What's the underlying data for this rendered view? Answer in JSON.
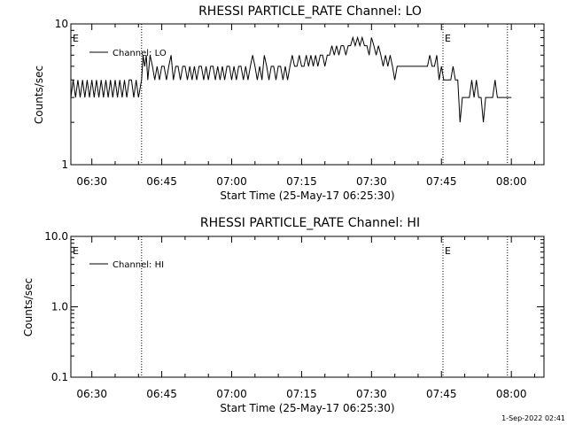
{
  "footer": {
    "timestamp": "1-Sep-2022 02:41"
  },
  "chart_data": [
    {
      "type": "line",
      "title": "RHESSI PARTICLE_RATE Channel: LO",
      "xlabel": "Start Time (25-May-17 06:25:30)",
      "ylabel": "Counts/sec",
      "yscale": "log",
      "ylim": [
        1,
        10
      ],
      "y_ticks": [
        {
          "value": 1,
          "label": "1"
        },
        {
          "value": 10,
          "label": "10"
        }
      ],
      "x_range": [
        "06:25:30",
        "08:07:00"
      ],
      "x_ticks": [
        "06:30",
        "06:45",
        "07:00",
        "07:15",
        "07:30",
        "07:45",
        "08:00"
      ],
      "event_lines": [
        "06:40:40",
        "07:45:20",
        "07:59:10"
      ],
      "event_markers": [
        {
          "text": "E",
          "time": "06:25:30"
        },
        {
          "text": "E",
          "time": "07:45:20"
        }
      ],
      "legend_position": "top-left",
      "series": [
        {
          "name": "Channel: LO",
          "points": [
            [
              "06:25:30",
              3
            ],
            [
              "06:26:00",
              4
            ],
            [
              "06:26:30",
              3
            ],
            [
              "06:27:00",
              4
            ],
            [
              "06:27:30",
              3
            ],
            [
              "06:28:00",
              4
            ],
            [
              "06:28:30",
              3
            ],
            [
              "06:29:00",
              4
            ],
            [
              "06:29:30",
              3
            ],
            [
              "06:30:00",
              4
            ],
            [
              "06:30:30",
              3
            ],
            [
              "06:31:00",
              4
            ],
            [
              "06:31:30",
              3
            ],
            [
              "06:32:00",
              4
            ],
            [
              "06:32:30",
              3
            ],
            [
              "06:33:00",
              4
            ],
            [
              "06:33:30",
              3
            ],
            [
              "06:34:00",
              4
            ],
            [
              "06:34:30",
              3
            ],
            [
              "06:35:00",
              4
            ],
            [
              "06:35:30",
              3
            ],
            [
              "06:36:00",
              4
            ],
            [
              "06:36:30",
              3
            ],
            [
              "06:37:00",
              4
            ],
            [
              "06:37:30",
              3
            ],
            [
              "06:38:00",
              4
            ],
            [
              "06:38:30",
              4
            ],
            [
              "06:39:00",
              3
            ],
            [
              "06:39:30",
              4
            ],
            [
              "06:40:00",
              3
            ],
            [
              "06:40:40",
              4
            ],
            [
              "06:41:00",
              6
            ],
            [
              "06:41:20",
              5
            ],
            [
              "06:41:40",
              6
            ],
            [
              "06:42:00",
              4
            ],
            [
              "06:42:30",
              6
            ],
            [
              "06:43:00",
              5
            ],
            [
              "06:43:30",
              4
            ],
            [
              "06:44:00",
              5
            ],
            [
              "06:44:30",
              4
            ],
            [
              "06:45:00",
              5
            ],
            [
              "06:45:30",
              5
            ],
            [
              "06:46:00",
              4
            ],
            [
              "06:46:30",
              5
            ],
            [
              "06:47:00",
              6
            ],
            [
              "06:47:30",
              4
            ],
            [
              "06:48:00",
              5
            ],
            [
              "06:48:30",
              5
            ],
            [
              "06:49:00",
              4
            ],
            [
              "06:49:30",
              5
            ],
            [
              "06:50:00",
              5
            ],
            [
              "06:50:30",
              4
            ],
            [
              "06:51:00",
              5
            ],
            [
              "06:51:30",
              4
            ],
            [
              "06:52:00",
              5
            ],
            [
              "06:52:30",
              4
            ],
            [
              "06:53:00",
              5
            ],
            [
              "06:53:30",
              5
            ],
            [
              "06:54:00",
              4
            ],
            [
              "06:54:30",
              5
            ],
            [
              "06:55:00",
              4
            ],
            [
              "06:55:30",
              5
            ],
            [
              "06:56:00",
              5
            ],
            [
              "06:56:30",
              4
            ],
            [
              "06:57:00",
              5
            ],
            [
              "06:57:30",
              4
            ],
            [
              "06:58:00",
              5
            ],
            [
              "06:58:30",
              4
            ],
            [
              "06:59:00",
              5
            ],
            [
              "06:59:30",
              5
            ],
            [
              "07:00:00",
              4
            ],
            [
              "07:00:30",
              5
            ],
            [
              "07:01:00",
              4
            ],
            [
              "07:01:30",
              5
            ],
            [
              "07:02:00",
              5
            ],
            [
              "07:02:30",
              4
            ],
            [
              "07:03:00",
              5
            ],
            [
              "07:03:30",
              4
            ],
            [
              "07:04:00",
              5
            ],
            [
              "07:04:30",
              6
            ],
            [
              "07:05:00",
              5
            ],
            [
              "07:05:30",
              4
            ],
            [
              "07:06:00",
              5
            ],
            [
              "07:06:30",
              4
            ],
            [
              "07:07:00",
              6
            ],
            [
              "07:07:30",
              5
            ],
            [
              "07:08:00",
              4
            ],
            [
              "07:08:30",
              5
            ],
            [
              "07:09:00",
              5
            ],
            [
              "07:09:30",
              4
            ],
            [
              "07:10:00",
              5
            ],
            [
              "07:10:30",
              5
            ],
            [
              "07:11:00",
              4
            ],
            [
              "07:11:30",
              5
            ],
            [
              "07:12:00",
              4
            ],
            [
              "07:12:30",
              5
            ],
            [
              "07:13:00",
              6
            ],
            [
              "07:13:30",
              5
            ],
            [
              "07:14:00",
              5
            ],
            [
              "07:14:30",
              6
            ],
            [
              "07:15:00",
              5
            ],
            [
              "07:15:30",
              5
            ],
            [
              "07:16:00",
              6
            ],
            [
              "07:16:30",
              5
            ],
            [
              "07:17:00",
              6
            ],
            [
              "07:17:30",
              5
            ],
            [
              "07:18:00",
              6
            ],
            [
              "07:18:30",
              5
            ],
            [
              "07:19:00",
              6
            ],
            [
              "07:19:30",
              6
            ],
            [
              "07:20:00",
              5
            ],
            [
              "07:20:30",
              6
            ],
            [
              "07:21:00",
              6
            ],
            [
              "07:21:30",
              7
            ],
            [
              "07:22:00",
              6
            ],
            [
              "07:22:30",
              7
            ],
            [
              "07:23:00",
              6
            ],
            [
              "07:23:30",
              7
            ],
            [
              "07:24:00",
              7
            ],
            [
              "07:24:30",
              6
            ],
            [
              "07:25:00",
              7
            ],
            [
              "07:25:30",
              7
            ],
            [
              "07:26:00",
              8
            ],
            [
              "07:26:30",
              7
            ],
            [
              "07:27:00",
              8
            ],
            [
              "07:27:30",
              7
            ],
            [
              "07:28:00",
              8
            ],
            [
              "07:28:30",
              7
            ],
            [
              "07:29:00",
              7
            ],
            [
              "07:29:30",
              6
            ],
            [
              "07:30:00",
              8
            ],
            [
              "07:30:30",
              7
            ],
            [
              "07:31:00",
              6
            ],
            [
              "07:31:30",
              7
            ],
            [
              "07:32:00",
              6
            ],
            [
              "07:32:30",
              5
            ],
            [
              "07:33:00",
              6
            ],
            [
              "07:33:30",
              5
            ],
            [
              "07:34:00",
              6
            ],
            [
              "07:34:30",
              5
            ],
            [
              "07:35:00",
              4
            ],
            [
              "07:35:30",
              5
            ],
            [
              "07:36:00",
              5
            ],
            [
              "07:37:00",
              5
            ],
            [
              "07:38:00",
              5
            ],
            [
              "07:38:30",
              5
            ],
            [
              "07:39:00",
              5
            ],
            [
              "07:40:00",
              5
            ],
            [
              "07:41:00",
              5
            ],
            [
              "07:42:00",
              5
            ],
            [
              "07:42:30",
              6
            ],
            [
              "07:43:00",
              5
            ],
            [
              "07:43:30",
              5
            ],
            [
              "07:44:00",
              6
            ],
            [
              "07:44:30",
              4
            ],
            [
              "07:45:00",
              5
            ],
            [
              "07:45:30",
              4
            ],
            [
              "07:46:00",
              4
            ],
            [
              "07:47:00",
              4
            ],
            [
              "07:47:30",
              5
            ],
            [
              "07:48:00",
              4
            ],
            [
              "07:48:30",
              4
            ],
            [
              "07:49:00",
              2
            ],
            [
              "07:49:30",
              3
            ],
            [
              "07:50:00",
              3
            ],
            [
              "07:50:30",
              3
            ],
            [
              "07:51:00",
              3
            ],
            [
              "07:51:30",
              4
            ],
            [
              "07:52:00",
              3
            ],
            [
              "07:52:30",
              4
            ],
            [
              "07:53:00",
              3
            ],
            [
              "07:53:30",
              3
            ],
            [
              "07:54:00",
              2
            ],
            [
              "07:54:30",
              3
            ],
            [
              "07:55:00",
              3
            ],
            [
              "07:55:30",
              3
            ],
            [
              "07:56:00",
              3
            ],
            [
              "07:56:30",
              4
            ],
            [
              "07:57:00",
              3
            ],
            [
              "07:57:30",
              3
            ],
            [
              "07:58:00",
              3
            ],
            [
              "07:59:00",
              3
            ],
            [
              "08:00:00",
              3
            ]
          ]
        }
      ]
    },
    {
      "type": "line",
      "title": "RHESSI PARTICLE_RATE Channel: HI",
      "xlabel": "Start Time (25-May-17 06:25:30)",
      "ylabel": "Counts/sec",
      "yscale": "log",
      "ylim": [
        0.1,
        10
      ],
      "y_ticks": [
        {
          "value": 0.1,
          "label": "0.1"
        },
        {
          "value": 1,
          "label": "1.0"
        },
        {
          "value": 10,
          "label": "10.0"
        }
      ],
      "x_range": [
        "06:25:30",
        "08:07:00"
      ],
      "x_ticks": [
        "06:30",
        "06:45",
        "07:00",
        "07:15",
        "07:30",
        "07:45",
        "08:00"
      ],
      "event_lines": [
        "06:40:40",
        "07:45:20",
        "07:59:10"
      ],
      "event_markers": [
        {
          "text": "E",
          "time": "06:25:30"
        },
        {
          "text": "E",
          "time": "07:45:20"
        }
      ],
      "legend_position": "top-left",
      "series": [
        {
          "name": "Channel: HI",
          "points": []
        }
      ]
    }
  ]
}
